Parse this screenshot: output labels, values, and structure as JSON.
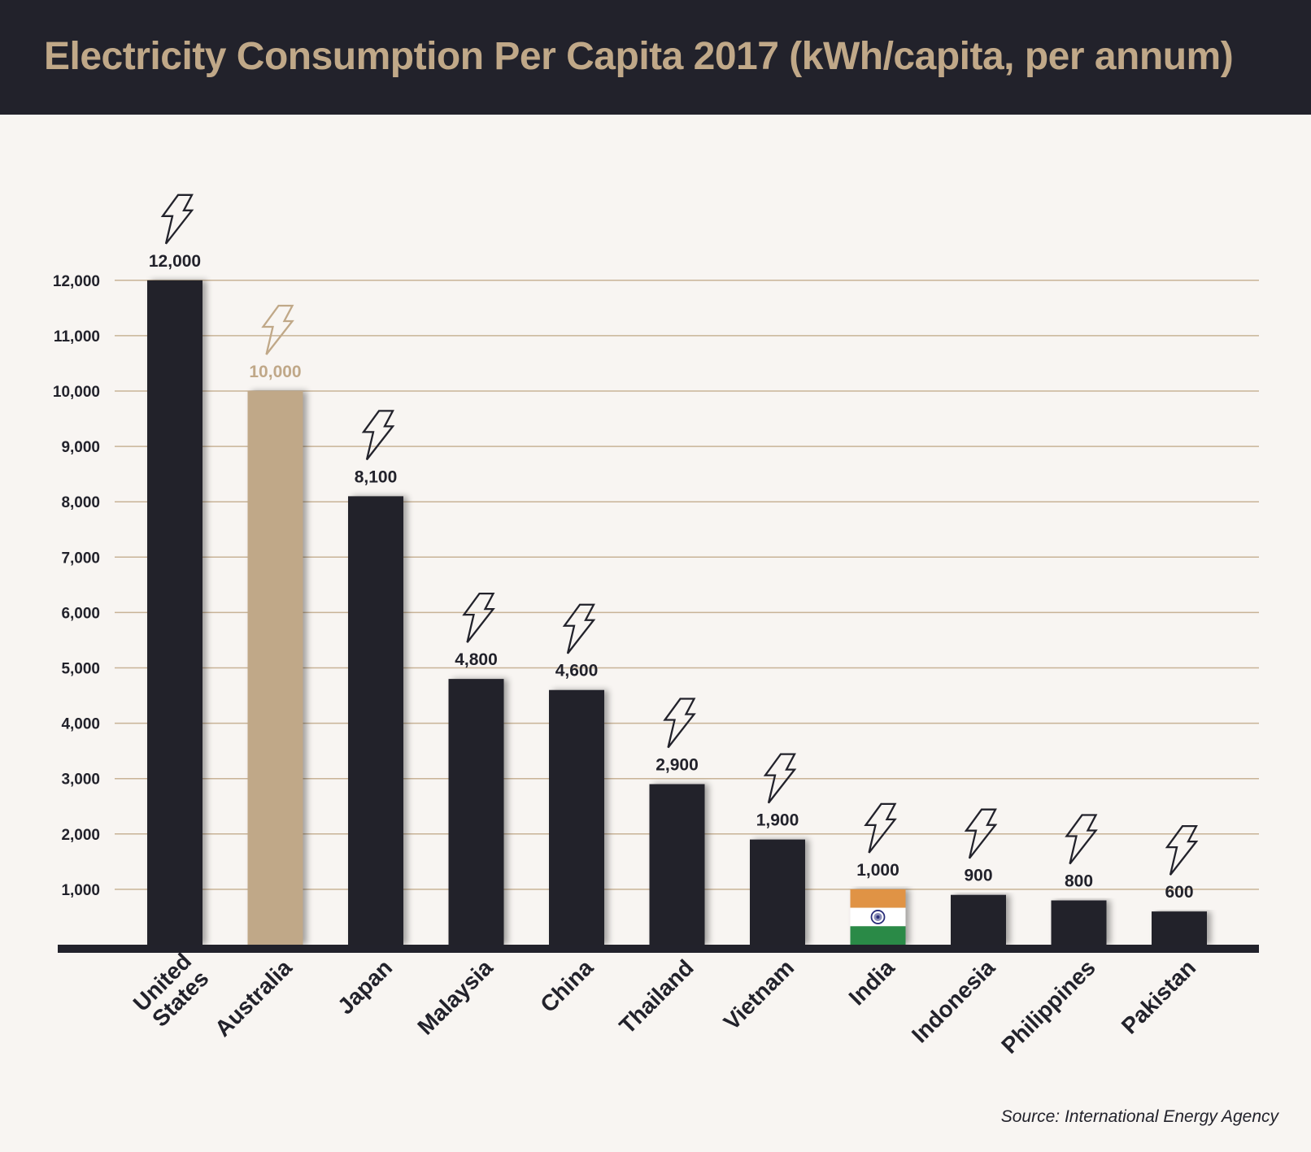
{
  "header": {
    "title": "Electricity Consumption Per Capita 2017 (kWh/capita, per annum)"
  },
  "footer": {
    "source": "Source: International Energy Agency"
  },
  "colors": {
    "dark": "#22222b",
    "accent": "#c0a888",
    "background": "#f8f5f2",
    "gridline": "#c8b397",
    "india_saffron": "#e09344",
    "india_white": "#ffffff",
    "india_green": "#2b8a47",
    "india_chakra": "#2a2f7a"
  },
  "chart_data": {
    "type": "bar",
    "title": "Electricity Consumption Per Capita 2017 (kWh/capita, per annum)",
    "xlabel": "",
    "ylabel": "kWh/capita, per annum",
    "ylim": [
      0,
      12000
    ],
    "yticks": [
      1000,
      2000,
      3000,
      4000,
      5000,
      6000,
      7000,
      8000,
      9000,
      10000,
      11000,
      12000
    ],
    "ytick_labels": [
      "1,000",
      "2,000",
      "3,000",
      "4,000",
      "5,000",
      "6,000",
      "7,000",
      "8,000",
      "9,000",
      "10,000",
      "11,000",
      "12,000"
    ],
    "grid": true,
    "legend": "none",
    "categories": [
      "United States",
      "Australia",
      "Japan",
      "Malaysia",
      "China",
      "Thailand",
      "Vietnam",
      "India",
      "Indonesia",
      "Philippines",
      "Pakistan"
    ],
    "category_label_lines": [
      [
        "United",
        "States"
      ],
      [
        "Australia"
      ],
      [
        "Japan"
      ],
      [
        "Malaysia"
      ],
      [
        "China"
      ],
      [
        "Thailand"
      ],
      [
        "Vietnam"
      ],
      [
        "India"
      ],
      [
        "Indonesia"
      ],
      [
        "Philippines"
      ],
      [
        "Pakistan"
      ]
    ],
    "values": [
      12000,
      10000,
      8100,
      4800,
      4600,
      2900,
      1900,
      1000,
      900,
      800,
      600
    ],
    "value_labels": [
      "12,000",
      "10,000",
      "8,100",
      "4,800",
      "4,600",
      "2,900",
      "1,900",
      "1,000",
      "900",
      "800",
      "600"
    ],
    "bar_styles": [
      "dark",
      "accent",
      "dark",
      "dark",
      "dark",
      "dark",
      "dark",
      "india-flag",
      "dark",
      "dark",
      "dark"
    ],
    "annotations": [
      "lightning-bolt-icon above every bar",
      "Australia highlighted in accent color",
      "India bar drawn as Indian flag"
    ]
  }
}
